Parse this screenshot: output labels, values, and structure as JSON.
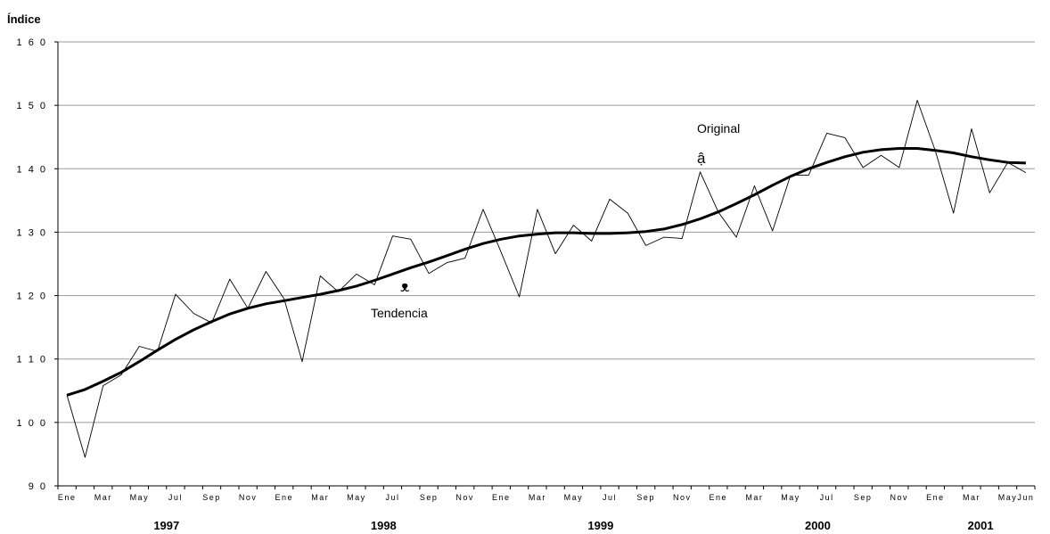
{
  "chart_data": {
    "type": "line",
    "ylabel": "Índice",
    "ylim": [
      90,
      160
    ],
    "yticks": [
      "1 6 0",
      "1 5 0",
      "1 4 0",
      "1 3 0",
      "1 2 0",
      "1 1 0",
      "1 0 0",
      "9 0"
    ],
    "yticks_values": [
      160,
      150,
      140,
      130,
      120,
      110,
      100,
      90
    ],
    "grid": true,
    "x_tick_labels": [
      "Ene",
      "Mar",
      "May",
      "Jul",
      "Sep",
      "Nov",
      "Ene",
      "Mar",
      "May",
      "Jul",
      "Sep",
      "Nov",
      "Ene",
      "Mar",
      "May",
      "Jul",
      "Sep",
      "Nov",
      "Ene",
      "Mar",
      "May",
      "Jul",
      "Sep",
      "Nov",
      "Ene",
      "Mar",
      "May",
      "Jun"
    ],
    "years": [
      "1997",
      "1998",
      "1999",
      "2000",
      "2001"
    ],
    "x": [
      "1997-01",
      "1997-02",
      "1997-03",
      "1997-04",
      "1997-05",
      "1997-06",
      "1997-07",
      "1997-08",
      "1997-09",
      "1997-10",
      "1997-11",
      "1997-12",
      "1998-01",
      "1998-02",
      "1998-03",
      "1998-04",
      "1998-05",
      "1998-06",
      "1998-07",
      "1998-08",
      "1998-09",
      "1998-10",
      "1998-11",
      "1998-12",
      "1999-01",
      "1999-02",
      "1999-03",
      "1999-04",
      "1999-05",
      "1999-06",
      "1999-07",
      "1999-08",
      "1999-09",
      "1999-10",
      "1999-11",
      "1999-12",
      "2000-01",
      "2000-02",
      "2000-03",
      "2000-04",
      "2000-05",
      "2000-06",
      "2000-07",
      "2000-08",
      "2000-09",
      "2000-10",
      "2000-11",
      "2000-12",
      "2001-01",
      "2001-02",
      "2001-03",
      "2001-04",
      "2001-05",
      "2001-06"
    ],
    "series": [
      {
        "name": "Original",
        "values": [
          104.3,
          94.5,
          105.8,
          107.5,
          112.0,
          111.2,
          120.2,
          117.2,
          115.7,
          122.6,
          118.0,
          123.8,
          119.5,
          109.6,
          123.1,
          120.6,
          123.4,
          121.7,
          129.4,
          128.9,
          123.5,
          125.2,
          125.9,
          133.6,
          126.8,
          119.8,
          133.6,
          126.6,
          131.1,
          128.6,
          135.2,
          133.0,
          127.9,
          129.2,
          129.0,
          139.5,
          133.2,
          129.2,
          137.3,
          130.2,
          139.0,
          139.0,
          145.6,
          144.9,
          140.2,
          142.1,
          140.2,
          150.8,
          142.8,
          133.0,
          146.3,
          136.2,
          141.0,
          139.4
        ]
      },
      {
        "name": "Tendencia",
        "values": [
          104.3,
          105.2,
          106.5,
          107.9,
          109.6,
          111.4,
          113.1,
          114.6,
          115.9,
          117.1,
          118.0,
          118.7,
          119.2,
          119.7,
          120.2,
          120.8,
          121.5,
          122.4,
          123.4,
          124.4,
          125.3,
          126.3,
          127.3,
          128.2,
          128.9,
          129.4,
          129.7,
          129.9,
          129.9,
          129.8,
          129.8,
          129.9,
          130.1,
          130.5,
          131.2,
          132.1,
          133.2,
          134.5,
          135.9,
          137.4,
          138.8,
          140.0,
          141.0,
          141.9,
          142.6,
          143.0,
          143.2,
          143.2,
          142.9,
          142.5,
          141.9,
          141.4,
          141.0,
          140.9
        ]
      }
    ],
    "annotations": [
      {
        "text": "Original",
        "arrow": "ậ"
      },
      {
        "text": "Tendencia",
        "arrow": "ᴥ"
      }
    ]
  }
}
